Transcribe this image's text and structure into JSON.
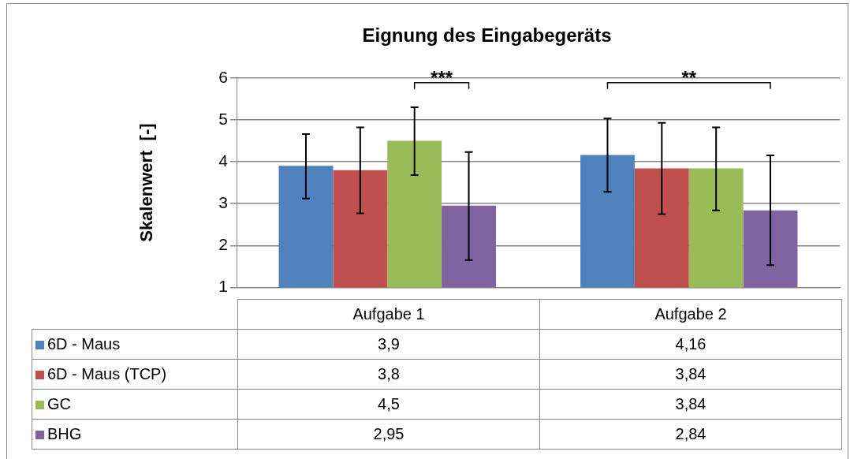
{
  "chart_data": {
    "type": "bar",
    "title": "Eignung des Eingabegeräts",
    "ylabel": "Skalenwert  [-]",
    "categories": [
      "Aufgabe 1",
      "Aufgabe 2"
    ],
    "series": [
      {
        "name": "6D - Maus",
        "color": "#4f81bd",
        "values": [
          3.9,
          4.16
        ],
        "errors": [
          [
            3.12,
            4.66
          ],
          [
            3.28,
            5.03
          ]
        ]
      },
      {
        "name": "6D - Maus (TCP)",
        "color": "#c0504d",
        "values": [
          3.8,
          3.84
        ],
        "errors": [
          [
            2.77,
            4.82
          ],
          [
            2.75,
            4.93
          ]
        ]
      },
      {
        "name": "GC",
        "color": "#9bbb59",
        "values": [
          4.5,
          3.84
        ],
        "errors": [
          [
            3.68,
            5.3
          ],
          [
            2.84,
            4.82
          ]
        ]
      },
      {
        "name": "BHG",
        "color": "#8064a2",
        "values": [
          2.95,
          2.84
        ],
        "errors": [
          [
            1.65,
            4.23
          ],
          [
            1.53,
            4.15
          ]
        ]
      }
    ],
    "value_labels": [
      [
        "3,9",
        "4,16"
      ],
      [
        "3,8",
        "3,84"
      ],
      [
        "4,5",
        "3,84"
      ],
      [
        "2,95",
        "2,84"
      ]
    ],
    "annotations": [
      "***",
      "**"
    ],
    "ylim": [
      1,
      6
    ],
    "yticks": [
      1,
      2,
      3,
      4,
      5,
      6
    ],
    "grid": "y",
    "legend": "bottom"
  }
}
